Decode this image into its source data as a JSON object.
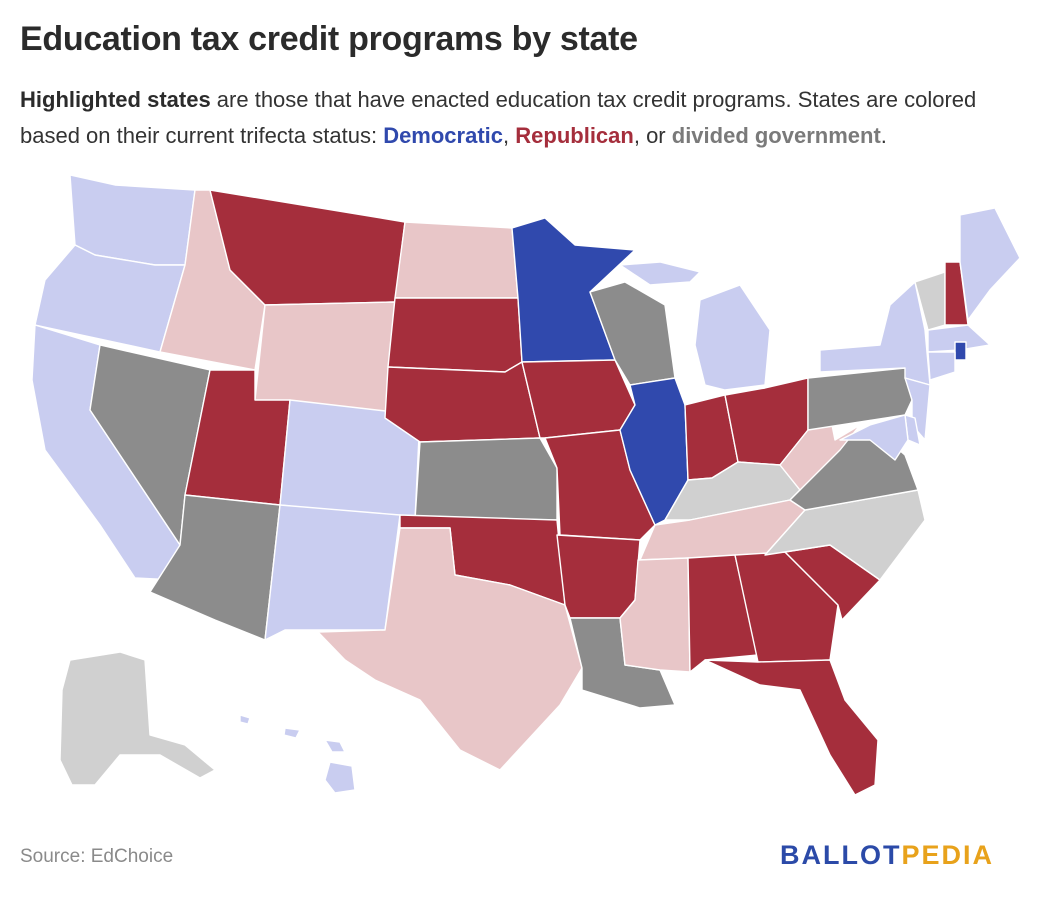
{
  "title": "Education tax credit programs by state",
  "subtitle": {
    "lead": "Highlighted states",
    "text1": " are those that have enacted education tax credit programs. States are colored based on their current trifecta status: ",
    "dem": "Democratic",
    "sep1": ", ",
    "rep": "Republican",
    "sep2": ", or ",
    "div": "divided government",
    "end": "."
  },
  "source": "Source: EdChoice",
  "logo": {
    "part1": "BALLOT",
    "part2": "PEDIA"
  },
  "colors": {
    "dem_program": "#3049ad",
    "rep_program": "#a52e3c",
    "div_program": "#8c8c8c",
    "dem_none": "#c9cdf0",
    "rep_none": "#e8c6c8",
    "div_none": "#d0d0d0"
  },
  "legend_categories": [
    "dem_program",
    "rep_program",
    "div_program",
    "dem_none",
    "rep_none",
    "div_none"
  ],
  "states": [
    {
      "abbr": "WA",
      "status": "dem_none"
    },
    {
      "abbr": "OR",
      "status": "dem_none"
    },
    {
      "abbr": "CA",
      "status": "dem_none"
    },
    {
      "abbr": "NV",
      "status": "div_program"
    },
    {
      "abbr": "ID",
      "status": "rep_none"
    },
    {
      "abbr": "MT",
      "status": "rep_program"
    },
    {
      "abbr": "WY",
      "status": "rep_none"
    },
    {
      "abbr": "UT",
      "status": "rep_program"
    },
    {
      "abbr": "AZ",
      "status": "div_program"
    },
    {
      "abbr": "CO",
      "status": "dem_none"
    },
    {
      "abbr": "NM",
      "status": "dem_none"
    },
    {
      "abbr": "ND",
      "status": "rep_none"
    },
    {
      "abbr": "SD",
      "status": "rep_program"
    },
    {
      "abbr": "NE",
      "status": "rep_program"
    },
    {
      "abbr": "KS",
      "status": "div_program"
    },
    {
      "abbr": "OK",
      "status": "rep_program"
    },
    {
      "abbr": "TX",
      "status": "rep_none"
    },
    {
      "abbr": "MN",
      "status": "dem_program"
    },
    {
      "abbr": "IA",
      "status": "rep_program"
    },
    {
      "abbr": "MO",
      "status": "rep_program"
    },
    {
      "abbr": "AR",
      "status": "rep_program"
    },
    {
      "abbr": "LA",
      "status": "div_program"
    },
    {
      "abbr": "WI",
      "status": "div_program"
    },
    {
      "abbr": "IL",
      "status": "dem_program"
    },
    {
      "abbr": "MI",
      "status": "dem_none"
    },
    {
      "abbr": "IN",
      "status": "rep_program"
    },
    {
      "abbr": "OH",
      "status": "rep_program"
    },
    {
      "abbr": "KY",
      "status": "div_none"
    },
    {
      "abbr": "TN",
      "status": "rep_none"
    },
    {
      "abbr": "MS",
      "status": "rep_none"
    },
    {
      "abbr": "AL",
      "status": "rep_program"
    },
    {
      "abbr": "GA",
      "status": "rep_program"
    },
    {
      "abbr": "FL",
      "status": "rep_program"
    },
    {
      "abbr": "SC",
      "status": "rep_program"
    },
    {
      "abbr": "NC",
      "status": "div_none"
    },
    {
      "abbr": "VA",
      "status": "div_program"
    },
    {
      "abbr": "WV",
      "status": "rep_none"
    },
    {
      "abbr": "PA",
      "status": "div_program"
    },
    {
      "abbr": "NY",
      "status": "dem_none"
    },
    {
      "abbr": "VT",
      "status": "div_none"
    },
    {
      "abbr": "NH",
      "status": "rep_program"
    },
    {
      "abbr": "ME",
      "status": "dem_none"
    },
    {
      "abbr": "MA",
      "status": "dem_none"
    },
    {
      "abbr": "RI",
      "status": "dem_program"
    },
    {
      "abbr": "CT",
      "status": "dem_none"
    },
    {
      "abbr": "NJ",
      "status": "dem_none"
    },
    {
      "abbr": "DE",
      "status": "dem_none"
    },
    {
      "abbr": "MD",
      "status": "dem_none"
    },
    {
      "abbr": "AK",
      "status": "div_none"
    },
    {
      "abbr": "HI",
      "status": "dem_none"
    }
  ]
}
